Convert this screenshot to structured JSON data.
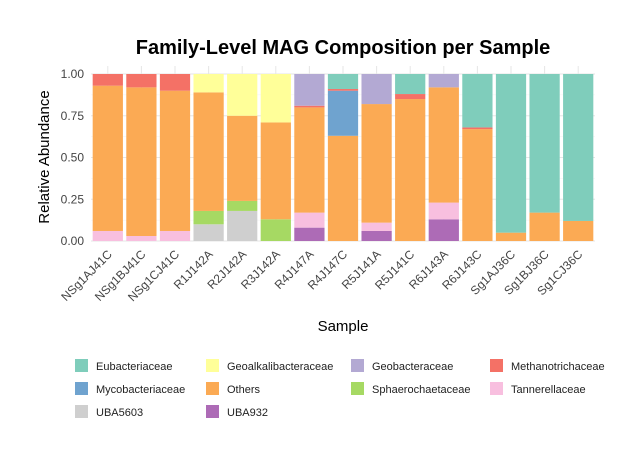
{
  "chart_data": {
    "type": "bar",
    "stacked": true,
    "title": "Family-Level MAG Composition per Sample",
    "xlabel": "Sample",
    "ylabel": "Relative Abundance",
    "ylim": [
      0,
      1
    ],
    "yticks": [
      "0.00",
      "0.25",
      "0.50",
      "0.75",
      "1.00"
    ],
    "legend_position": "bottom",
    "categories": [
      "NSg1AJ41C",
      "NSg1BJ41C",
      "NSg1CJ41C",
      "R1J142A",
      "R2J142A",
      "R3J142A",
      "R4J147A",
      "R4J147C",
      "R5J141A",
      "R5J141C",
      "R6J143A",
      "R6J143C",
      "Sg1AJ36C",
      "Sg1BJ36C",
      "Sg1CJ36C"
    ],
    "stack_order": [
      "UBA932",
      "UBA5603",
      "Tannerellaceae",
      "Sphaerochaetaceae",
      "Others",
      "Mycobacteriaceae",
      "Methanotrichaceae",
      "Geobacteraceae",
      "Geoalkalibacteraceae",
      "Eubacteriaceae"
    ],
    "series": [
      {
        "name": "Eubacteriaceae",
        "color": "#7fcdbb",
        "values": [
          0,
          0,
          0,
          0,
          0,
          0,
          0,
          0.09,
          0,
          0.12,
          0,
          0.32,
          0.95,
          0.83,
          0.88
        ]
      },
      {
        "name": "Geoalkalibacteraceae",
        "color": "#ffff99",
        "values": [
          0,
          0,
          0,
          0.11,
          0.25,
          0.29,
          0,
          0,
          0,
          0,
          0,
          0,
          0,
          0,
          0
        ]
      },
      {
        "name": "Geobacteraceae",
        "color": "#b3a9d3",
        "values": [
          0,
          0,
          0,
          0,
          0,
          0,
          0.19,
          0,
          0.18,
          0,
          0.08,
          0,
          0,
          0,
          0
        ]
      },
      {
        "name": "Methanotrichaceae",
        "color": "#f47166",
        "values": [
          0.07,
          0.08,
          0.1,
          0,
          0,
          0,
          0.01,
          0.01,
          0,
          0.03,
          0,
          0.01,
          0,
          0,
          0
        ]
      },
      {
        "name": "Mycobacteriaceae",
        "color": "#6fa3cf",
        "values": [
          0,
          0,
          0,
          0,
          0,
          0,
          0,
          0.27,
          0,
          0,
          0,
          0,
          0,
          0,
          0
        ]
      },
      {
        "name": "Others",
        "color": "#fbaa54",
        "values": [
          0.87,
          0.89,
          0.84,
          0.71,
          0.51,
          0.58,
          0.63,
          0.63,
          0.71,
          0.85,
          0.69,
          0.67,
          0.05,
          0.17,
          0.12
        ]
      },
      {
        "name": "Sphaerochaetaceae",
        "color": "#a6d963",
        "values": [
          0,
          0,
          0,
          0.08,
          0.06,
          0.13,
          0,
          0,
          0,
          0,
          0,
          0,
          0,
          0,
          0
        ]
      },
      {
        "name": "Tannerellaceae",
        "color": "#f8bfdf",
        "values": [
          0.06,
          0.03,
          0.06,
          0,
          0,
          0,
          0.09,
          0,
          0.05,
          0,
          0.1,
          0,
          0,
          0,
          0
        ]
      },
      {
        "name": "UBA5603",
        "color": "#cfcfcf",
        "values": [
          0,
          0,
          0,
          0.1,
          0.18,
          0,
          0,
          0,
          0,
          0,
          0,
          0,
          0,
          0,
          0
        ]
      },
      {
        "name": "UBA932",
        "color": "#ad6bb6",
        "values": [
          0,
          0,
          0,
          0,
          0,
          0,
          0.08,
          0,
          0.06,
          0,
          0.13,
          0,
          0,
          0,
          0
        ]
      }
    ],
    "legend_order": [
      "Eubacteriaceae",
      "Geoalkalibacteraceae",
      "Geobacteraceae",
      "Methanotrichaceae",
      "Mycobacteriaceae",
      "Others",
      "Sphaerochaetaceae",
      "Tannerellaceae",
      "UBA5603",
      "UBA932"
    ]
  }
}
